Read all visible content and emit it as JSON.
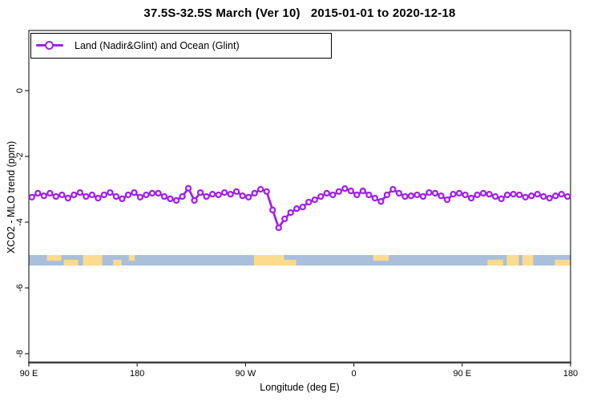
{
  "title": "37.5S-32.5S March (Ver 10)   2015-01-01 to 2020-12-18",
  "legend": {
    "label": "Land (Nadir&Glint) and Ocean (Glint)",
    "marker": "open-circle",
    "line_color": "#A020F0"
  },
  "axes": {
    "x": {
      "label": "Longitude (deg E)",
      "tick_labels": [
        "90 E",
        "180",
        "90 W",
        "0",
        "90 E",
        "180"
      ],
      "tick_offsets_deg": [
        0,
        90,
        180,
        270,
        360,
        450
      ],
      "range_offset_deg": [
        0,
        450
      ],
      "note": "axis wraps eastward: 90E to 180 to 90W to 0 to 90E to 180"
    },
    "y": {
      "label": "XCO2 - MLO trend (ppm)",
      "tick_labels": [
        "0",
        "-2",
        "-4",
        "-6",
        "-8"
      ],
      "tick_values": [
        0,
        -2,
        -4,
        -6,
        -8
      ],
      "range": [
        1.8,
        -8.3
      ]
    }
  },
  "chart_data": {
    "type": "line",
    "title": "37.5S-32.5S March (Ver 10)   2015-01-01 to 2020-12-18",
    "xlabel": "Longitude (deg E)",
    "ylabel": "XCO2 - MLO trend (ppm)",
    "xlim_offset_deg": [
      0,
      450
    ],
    "ylim": [
      -8.3,
      1.8
    ],
    "grid": false,
    "legend_position": "top-left",
    "series": [
      {
        "name": "Land (Nadir&Glint) and Ocean (Glint)",
        "color": "#A020F0",
        "marker": "open-circle",
        "x_offset_deg": [
          2.5,
          7.5,
          12.5,
          17.5,
          22.5,
          27.5,
          32.5,
          37.5,
          42.5,
          47.5,
          52.5,
          57.5,
          62.5,
          67.5,
          72.5,
          77.5,
          82.5,
          87.5,
          92.5,
          97.5,
          102.5,
          107.5,
          112.5,
          117.5,
          122.5,
          127.5,
          132.5,
          137.5,
          142.5,
          147.5,
          152.5,
          157.5,
          162.5,
          167.5,
          172.5,
          177.5,
          182.5,
          187.5,
          192.5,
          197.5,
          202.5,
          207.5,
          212.5,
          217.5,
          222.5,
          227.5,
          232.5,
          237.5,
          242.5,
          247.5,
          252.5,
          257.5,
          262.5,
          267.5,
          272.5,
          277.5,
          282.5,
          287.5,
          292.5,
          297.5,
          302.5,
          307.5,
          312.5,
          317.5,
          322.5,
          327.5,
          332.5,
          337.5,
          342.5,
          347.5,
          352.5,
          357.5,
          362.5,
          367.5,
          372.5,
          377.5,
          382.5,
          387.5,
          392.5,
          397.5,
          402.5,
          407.5,
          412.5,
          417.5,
          422.5,
          427.5,
          432.5,
          437.5,
          442.5,
          447.5
        ],
        "values": [
          -3.24,
          -3.12,
          -3.2,
          -3.12,
          -3.22,
          -3.17,
          -3.27,
          -3.17,
          -3.1,
          -3.22,
          -3.17,
          -3.27,
          -3.17,
          -3.1,
          -3.22,
          -3.29,
          -3.17,
          -3.1,
          -3.24,
          -3.17,
          -3.12,
          -3.12,
          -3.22,
          -3.29,
          -3.34,
          -3.22,
          -2.97,
          -3.34,
          -3.1,
          -3.22,
          -3.15,
          -3.17,
          -3.1,
          -3.15,
          -3.07,
          -3.2,
          -3.24,
          -3.12,
          -3.0,
          -3.07,
          -3.63,
          -4.17,
          -3.9,
          -3.71,
          -3.59,
          -3.54,
          -3.39,
          -3.32,
          -3.22,
          -3.12,
          -3.17,
          -3.07,
          -2.98,
          -3.05,
          -3.17,
          -3.05,
          -3.17,
          -3.27,
          -3.37,
          -3.17,
          -3.0,
          -3.12,
          -3.22,
          -3.2,
          -3.17,
          -3.22,
          -3.1,
          -3.12,
          -3.2,
          -3.32,
          -3.15,
          -3.12,
          -3.17,
          -3.27,
          -3.17,
          -3.12,
          -3.15,
          -3.22,
          -3.29,
          -3.17,
          -3.15,
          -3.17,
          -3.24,
          -3.2,
          -3.15,
          -3.22,
          -3.27,
          -3.2,
          -3.15,
          -3.22
        ]
      }
    ],
    "map_strip": {
      "description": "land/ocean band for 37.5S-32.5S along longitude axis",
      "ocean_color": "#A9BFDB",
      "land_color": "#FBDB8D",
      "y_top_ppm": -5.0,
      "y_bottom_ppm": -5.32,
      "land_patches": [
        {
          "start_deg": 15,
          "end_deg": 27,
          "coverage": "top"
        },
        {
          "start_deg": 29,
          "end_deg": 41,
          "coverage": "bottom"
        },
        {
          "start_deg": 45,
          "end_deg": 61,
          "coverage": "full"
        },
        {
          "start_deg": 70,
          "end_deg": 77,
          "coverage": "bottom"
        },
        {
          "start_deg": 83,
          "end_deg": 88,
          "coverage": "top"
        },
        {
          "start_deg": 187,
          "end_deg": 212,
          "coverage": "full"
        },
        {
          "start_deg": 212,
          "end_deg": 222,
          "coverage": "bottom"
        },
        {
          "start_deg": 286,
          "end_deg": 299,
          "coverage": "top"
        },
        {
          "start_deg": 381,
          "end_deg": 394,
          "coverage": "bottom"
        },
        {
          "start_deg": 397,
          "end_deg": 407,
          "coverage": "full"
        },
        {
          "start_deg": 410,
          "end_deg": 419,
          "coverage": "full"
        },
        {
          "start_deg": 437,
          "end_deg": 450,
          "coverage": "bottom"
        }
      ]
    }
  },
  "colors": {
    "series": "#A020F0",
    "ocean": "#A9BFDB",
    "land": "#FBDB8D",
    "background": "#FFFFFF",
    "axis_box": "#000000",
    "bottom_axis": "#404040"
  }
}
